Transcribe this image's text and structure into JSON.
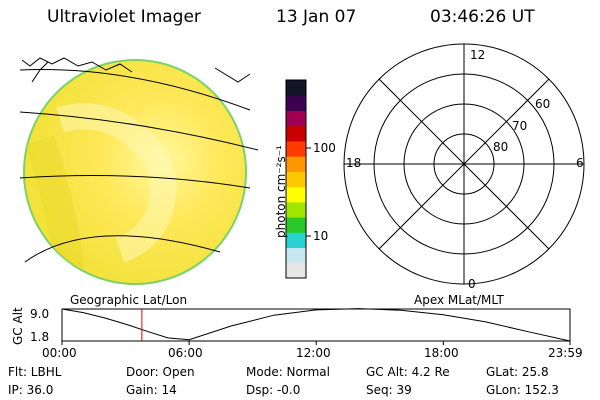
{
  "header": {
    "instrument": "Ultraviolet Imager",
    "date": "13 Jan 07",
    "time": "03:46:26 UT"
  },
  "colorbar": {
    "label": "photon cm⁻²s⁻¹",
    "ticks": [
      "100",
      "10"
    ],
    "colors": [
      "#e6e6e6",
      "#c8e6f0",
      "#28d2d2",
      "#28c828",
      "#a0e600",
      "#ffff00",
      "#ffc800",
      "#ff9600",
      "#ff3c00",
      "#c80000",
      "#a00050",
      "#3c0050",
      "#141428"
    ]
  },
  "polar_plot": {
    "lat_labels": [
      "80",
      "70",
      "60"
    ],
    "mlt_labels": {
      "top": "12",
      "left": "18",
      "right": "6",
      "bottom": "0"
    }
  },
  "altitude_plot": {
    "left_caption": "Geographic Lat/Lon",
    "right_caption": "Apex MLat/MLT",
    "ylabel": "GC Alt",
    "y_ticks": [
      "9.0",
      "1.8"
    ],
    "x_ticks": [
      "00:00",
      "06:00",
      "12:00",
      "18:00",
      "23:59"
    ],
    "current_time_color": "#e00000"
  },
  "chart_data": {
    "type": "line",
    "title": "",
    "xlabel": "",
    "ylabel": "GC Alt",
    "x_hours": [
      0,
      1,
      2,
      3,
      4,
      5,
      6,
      8,
      10,
      12,
      14,
      16,
      18,
      20,
      22,
      23.98
    ],
    "y_re": [
      9.0,
      8.2,
      7.0,
      5.6,
      4.0,
      2.5,
      2.1,
      5.2,
      7.6,
      8.8,
      9.1,
      8.7,
      7.7,
      6.1,
      3.9,
      1.8
    ],
    "current_time_hour": 3.77,
    "ylim": [
      1.8,
      9.0
    ],
    "xlim": [
      0,
      23.98
    ]
  },
  "status": {
    "flt": "Flt: LBHL",
    "door": "Door: Open",
    "mode": "Mode: Normal",
    "gc_alt": "GC Alt: 4.2 Re",
    "glat": "GLat:  25.8",
    "ip": "IP: 36.0",
    "gain": "Gain: 14",
    "dsp": "Dsp:   -0.0",
    "seq": "Seq: 39",
    "glon": "GLon: 152.3"
  }
}
